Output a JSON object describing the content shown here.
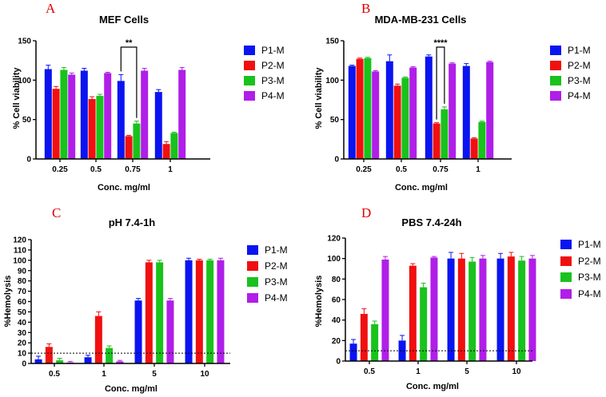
{
  "colors": {
    "P1-M": "#0a14f0",
    "P2-M": "#f01010",
    "P3-M": "#19c21c",
    "P4-M": "#b01ee8",
    "panel_letter": "#e00000"
  },
  "chart_data": [
    {
      "type": "bar",
      "panel": "A",
      "title": "MEF Cells",
      "xlabel": "Conc. mg/ml",
      "ylabel": "% Cell viability",
      "ylim": [
        0,
        150
      ],
      "yticks": [
        "0",
        "50",
        "100",
        "150"
      ],
      "categories": [
        "0.25",
        "0.5",
        "0.75",
        "1"
      ],
      "series": [
        {
          "name": "P1-M",
          "values": [
            114,
            112,
            99,
            85
          ],
          "errors": [
            5,
            3,
            8,
            3
          ]
        },
        {
          "name": "P2-M",
          "values": [
            89,
            76,
            29,
            19
          ],
          "errors": [
            3,
            3,
            1,
            3
          ]
        },
        {
          "name": "P3-M",
          "values": [
            113,
            80,
            45,
            33
          ],
          "errors": [
            3,
            2,
            3,
            1
          ]
        },
        {
          "name": "P4-M",
          "values": [
            107,
            109,
            112,
            113
          ],
          "errors": [
            2,
            1,
            3,
            3
          ]
        }
      ],
      "significance": {
        "label": "**",
        "category": "0.75",
        "from": "P1-M",
        "to": "P3-M"
      }
    },
    {
      "type": "bar",
      "panel": "B",
      "title": "MDA-MB-231 Cells",
      "xlabel": "Conc. mg/ml",
      "ylabel": "% Cell viability",
      "ylim": [
        0,
        150
      ],
      "yticks": [
        "0",
        "50",
        "100",
        "150"
      ],
      "categories": [
        "0.25",
        "0.5",
        "0.75",
        "1"
      ],
      "series": [
        {
          "name": "P1-M",
          "values": [
            118,
            124,
            130,
            118
          ],
          "errors": [
            1,
            8,
            2,
            3
          ]
        },
        {
          "name": "P2-M",
          "values": [
            127,
            93,
            45,
            26
          ],
          "errors": [
            1,
            2,
            1,
            1
          ]
        },
        {
          "name": "P3-M",
          "values": [
            128,
            103,
            63,
            47
          ],
          "errors": [
            1,
            1,
            3,
            1
          ]
        },
        {
          "name": "P4-M",
          "values": [
            111,
            116,
            121,
            123
          ],
          "errors": [
            1,
            1,
            1,
            1
          ]
        }
      ],
      "significance": {
        "label": "****",
        "category": "0.75",
        "from": "P2-M",
        "to": "P3-M"
      }
    },
    {
      "type": "bar",
      "panel": "C",
      "title": "pH 7.4-1h",
      "xlabel": "Conc. mg/ml",
      "ylabel": "%Hemolysis",
      "ylim": [
        0,
        120
      ],
      "yticks": [
        "0",
        "10",
        "20",
        "30",
        "40",
        "50",
        "60",
        "70",
        "80",
        "90",
        "100",
        "110",
        "120"
      ],
      "categories": [
        "0.5",
        "1",
        "5",
        "10"
      ],
      "threshold": 10,
      "series": [
        {
          "name": "P1-M",
          "values": [
            4,
            6,
            61,
            100
          ],
          "errors": [
            3,
            2,
            2,
            2
          ]
        },
        {
          "name": "P2-M",
          "values": [
            16,
            46,
            98,
            100
          ],
          "errors": [
            3,
            4,
            2,
            1
          ]
        },
        {
          "name": "P3-M",
          "values": [
            3,
            15,
            98,
            100
          ],
          "errors": [
            2,
            2,
            2,
            1
          ]
        },
        {
          "name": "P4-M",
          "values": [
            1,
            2,
            61,
            100
          ],
          "errors": [
            1,
            1,
            2,
            2
          ]
        }
      ]
    },
    {
      "type": "bar",
      "panel": "D",
      "title": "PBS 7.4-24h",
      "xlabel": "Conc. mg/ml",
      "ylabel": "%Hemolysis",
      "ylim": [
        0,
        120
      ],
      "yticks": [
        "0",
        "20",
        "40",
        "60",
        "80",
        "100",
        "120"
      ],
      "categories": [
        "0.5",
        "1",
        "5",
        "10"
      ],
      "threshold": 10,
      "series": [
        {
          "name": "P1-M",
          "values": [
            17,
            20,
            100,
            100
          ],
          "errors": [
            4,
            5,
            6,
            5
          ]
        },
        {
          "name": "P2-M",
          "values": [
            46,
            93,
            100,
            102
          ],
          "errors": [
            5,
            2,
            5,
            4
          ]
        },
        {
          "name": "P3-M",
          "values": [
            36,
            72,
            97,
            98
          ],
          "errors": [
            3,
            4,
            4,
            4
          ]
        },
        {
          "name": "P4-M",
          "values": [
            99,
            101,
            100,
            100
          ],
          "errors": [
            3,
            1,
            3,
            3
          ]
        }
      ]
    }
  ]
}
